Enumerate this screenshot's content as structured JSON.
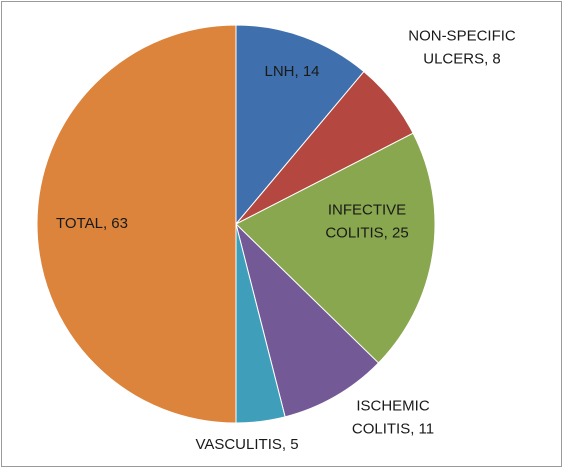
{
  "chart_data": {
    "type": "pie",
    "values": [
      14,
      8,
      25,
      11,
      5,
      63
    ],
    "value_labels": [
      [
        "LNH, 14"
      ],
      [
        "NON-SPECIFIC",
        "ULCERS, 8"
      ],
      [
        "INFECTIVE",
        "COLITIS, 25"
      ],
      [
        "ISCHEMIC",
        "COLITIS, 11"
      ],
      [
        "VASCULITIS, 5"
      ],
      [
        "TOTAL, 63"
      ]
    ],
    "colors": [
      "#3f70ad",
      "#b4473f",
      "#89a74e",
      "#735a97",
      "#3f9fba",
      "#dc843c"
    ]
  }
}
